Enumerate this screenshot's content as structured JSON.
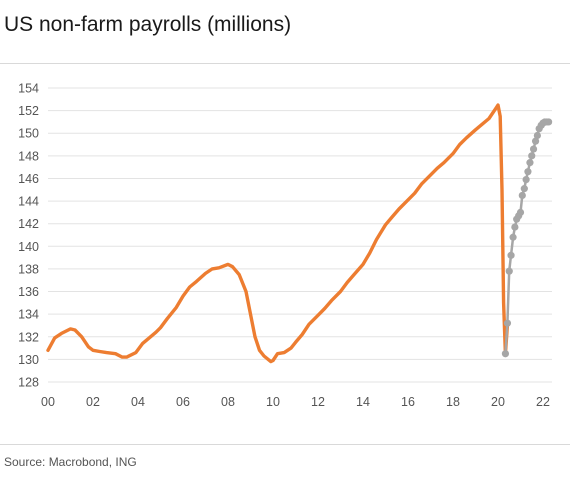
{
  "title": "US non-farm payrolls (millions)",
  "source": "Source: Macrobond, ING",
  "colors": {
    "actual": "#ed7d31",
    "recovery": "#a6a6a6",
    "grid": "#e3e3e3",
    "text": "#555555"
  },
  "chart_data": {
    "type": "line",
    "title": "US non-farm payrolls (millions)",
    "xlabel": "",
    "ylabel": "",
    "xlim": [
      2000,
      2022.4
    ],
    "ylim": [
      128,
      154
    ],
    "yticks": [
      128,
      130,
      132,
      134,
      136,
      138,
      140,
      142,
      144,
      146,
      148,
      150,
      152,
      154
    ],
    "ytick_labels": [
      "128",
      "130",
      "132",
      "134",
      "136",
      "138",
      "140",
      "142",
      "144",
      "146",
      "148",
      "150",
      "152",
      "154"
    ],
    "xticks": [
      2000,
      2002,
      2004,
      2006,
      2008,
      2010,
      2012,
      2014,
      2016,
      2018,
      2020,
      2022
    ],
    "xtick_labels": [
      "00",
      "02",
      "04",
      "06",
      "08",
      "10",
      "12",
      "14",
      "16",
      "18",
      "20",
      "22"
    ],
    "grid": true,
    "series": [
      {
        "color": "#ed7d31",
        "style": "line",
        "x": [
          2000.0,
          2000.3,
          2000.6,
          2001.0,
          2001.2,
          2001.5,
          2001.8,
          2002.0,
          2002.3,
          2002.6,
          2003.0,
          2003.3,
          2003.5,
          2003.9,
          2004.2,
          2004.5,
          2004.8,
          2005.0,
          2005.3,
          2005.7,
          2006.0,
          2006.3,
          2006.6,
          2007.0,
          2007.3,
          2007.6,
          2008.0,
          2008.2,
          2008.5,
          2008.8,
          2009.0,
          2009.2,
          2009.4,
          2009.6,
          2009.9,
          2010.0,
          2010.2,
          2010.5,
          2010.8,
          2011.0,
          2011.3,
          2011.6,
          2012.0,
          2012.3,
          2012.6,
          2013.0,
          2013.3,
          2013.6,
          2014.0,
          2014.3,
          2014.6,
          2015.0,
          2015.3,
          2015.6,
          2016.0,
          2016.3,
          2016.6,
          2017.0,
          2017.3,
          2017.6,
          2018.0,
          2018.3,
          2018.6,
          2019.0,
          2019.3,
          2019.6,
          2019.9,
          2020.0,
          2020.1,
          2020.18,
          2020.25,
          2020.33,
          2020.42
        ],
        "y": [
          130.8,
          131.9,
          132.3,
          132.7,
          132.6,
          132.0,
          131.1,
          130.8,
          130.7,
          130.6,
          130.5,
          130.2,
          130.2,
          130.6,
          131.4,
          131.9,
          132.4,
          132.8,
          133.6,
          134.6,
          135.6,
          136.4,
          136.9,
          137.6,
          138.0,
          138.1,
          138.4,
          138.2,
          137.5,
          136.0,
          134.0,
          132.0,
          130.8,
          130.3,
          129.8,
          129.9,
          130.5,
          130.6,
          131.0,
          131.5,
          132.2,
          133.1,
          133.9,
          134.5,
          135.2,
          136.0,
          136.8,
          137.5,
          138.4,
          139.4,
          140.6,
          141.9,
          142.6,
          143.3,
          144.1,
          144.7,
          145.5,
          146.3,
          146.9,
          147.4,
          148.2,
          149.0,
          149.6,
          150.3,
          150.8,
          151.3,
          152.2,
          152.5,
          151.5,
          145.0,
          135.0,
          130.5,
          133.0
        ]
      },
      {
        "color": "#a6a6a6",
        "style": "line-markers",
        "x": [
          2020.33,
          2020.42,
          2020.5,
          2020.58,
          2020.67,
          2020.75,
          2020.83,
          2020.92,
          2021.0,
          2021.08,
          2021.17,
          2021.25,
          2021.33,
          2021.42,
          2021.5,
          2021.58,
          2021.67,
          2021.75,
          2021.83,
          2021.92,
          2022.0,
          2022.08,
          2022.17,
          2022.25
        ],
        "y": [
          130.5,
          133.2,
          137.8,
          139.2,
          140.8,
          141.7,
          142.4,
          142.7,
          143.0,
          144.5,
          145.1,
          145.9,
          146.6,
          147.4,
          148.0,
          148.6,
          149.3,
          149.8,
          150.4,
          150.7,
          150.9,
          151.0,
          151.0,
          151.0
        ]
      }
    ]
  }
}
